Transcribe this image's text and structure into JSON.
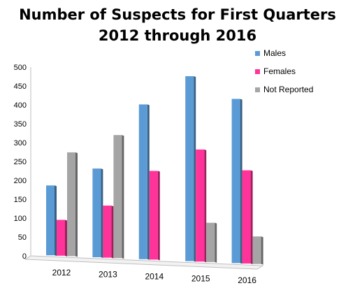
{
  "chart_data": {
    "type": "bar",
    "title_lines": [
      "Number of Suspects for First Quarters",
      "2012 through 2016"
    ],
    "categories": [
      "2012",
      "2013",
      "2014",
      "2015",
      "2016"
    ],
    "series": [
      {
        "name": "Males",
        "values": [
          185,
          235,
          410,
          490,
          435
        ],
        "color": "#5B9BD5"
      },
      {
        "name": "Females",
        "values": [
          95,
          138,
          235,
          297,
          247
        ],
        "color": "#FF3399"
      },
      {
        "name": "Not Reported",
        "values": [
          275,
          326,
          0,
          104,
          73
        ],
        "color": "#A5A5A5"
      }
    ],
    "y_ticks": [
      "0",
      "50",
      "100",
      "150",
      "200",
      "250",
      "300",
      "350",
      "400",
      "450",
      "500"
    ],
    "ylim": [
      0,
      500
    ],
    "legend_position": "right",
    "grid": false
  }
}
